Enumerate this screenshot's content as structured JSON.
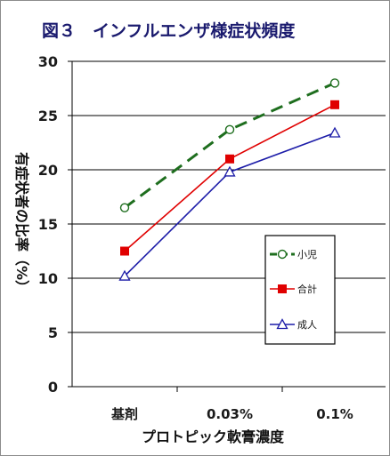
{
  "chart_data": {
    "type": "line",
    "title": "図３　インフルエンザ様症状頻度",
    "xlabel": "プロトピック軟膏濃度",
    "ylabel": "有症状者の比率（%）",
    "categories": [
      "基剤",
      "0.03%",
      "0.1%"
    ],
    "ylim": [
      0,
      30
    ],
    "yticks": [
      0,
      5,
      10,
      15,
      20,
      25,
      30
    ],
    "grid": "horizontal",
    "legend_position": "right-middle",
    "series": [
      {
        "name": "小児",
        "values": [
          16.5,
          23.7,
          28.0
        ],
        "color": "#1e6e1e",
        "marker": "circle-open",
        "line": "dashed"
      },
      {
        "name": "合計",
        "values": [
          12.5,
          21.0,
          26.0
        ],
        "color": "#e00000",
        "marker": "square-filled",
        "line": "solid"
      },
      {
        "name": "成人",
        "values": [
          10.2,
          19.8,
          23.4
        ],
        "color": "#1c1ca8",
        "marker": "triangle-open",
        "line": "solid"
      }
    ]
  }
}
